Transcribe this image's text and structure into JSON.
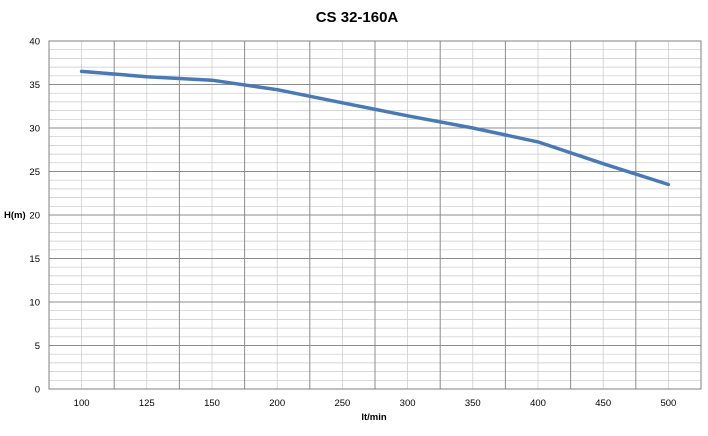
{
  "chart_data": {
    "type": "line",
    "title": "CS 32-160A",
    "xlabel": "lt/min",
    "ylabel": "H(m)",
    "x_ticks": [
      100,
      125,
      150,
      200,
      250,
      300,
      350,
      400,
      450,
      500
    ],
    "y_ticks": [
      0,
      5,
      10,
      15,
      20,
      25,
      30,
      35,
      40
    ],
    "ylim": [
      0,
      40
    ],
    "grid": true,
    "legend": "none",
    "series": [
      {
        "color": "#4a7ab5",
        "points": [
          {
            "x": 100,
            "y": 36.5
          },
          {
            "x": 125,
            "y": 35.9
          },
          {
            "x": 150,
            "y": 35.5
          },
          {
            "x": 200,
            "y": 34.4
          },
          {
            "x": 250,
            "y": 32.9
          },
          {
            "x": 300,
            "y": 31.4
          },
          {
            "x": 350,
            "y": 30.0
          },
          {
            "x": 400,
            "y": 28.4
          },
          {
            "x": 450,
            "y": 25.9
          },
          {
            "x": 500,
            "y": 23.5
          }
        ]
      }
    ]
  }
}
